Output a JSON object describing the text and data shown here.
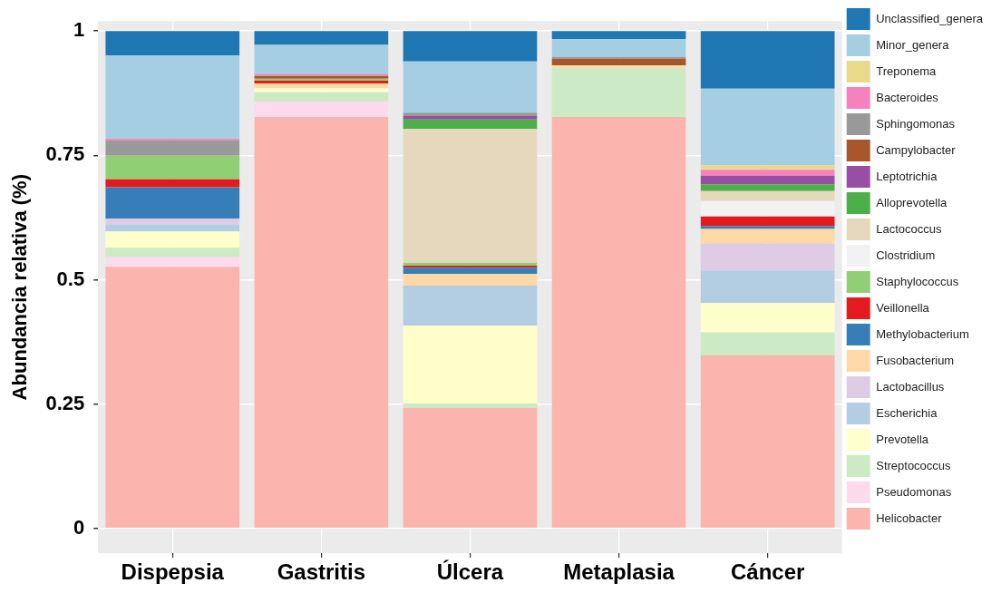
{
  "chart_data": {
    "type": "bar",
    "stacked": true,
    "ylabel": "Abundancia relativa (%)",
    "categories": [
      "Dispepsia",
      "Gastritis",
      "Úlcera",
      "Metaplasia",
      "Cáncer"
    ],
    "ylim": [
      -0.05,
      1.02
    ],
    "yticks": [
      0,
      0.25,
      0.5,
      0.75,
      1
    ],
    "grid": true,
    "legend": "right",
    "series": [
      {
        "name": "Helicobacter",
        "color": "#fbb4ae",
        "values": [
          0.526,
          0.827,
          0.242,
          0.827,
          0.348
        ]
      },
      {
        "name": "Pseudomonas",
        "color": "#fddaec",
        "values": [
          0.02,
          0.031,
          0,
          0,
          0
        ]
      },
      {
        "name": "Streptococcus",
        "color": "#ccebc5",
        "values": [
          0.018,
          0.019,
          0.009,
          0.099,
          0.046
        ]
      },
      {
        "name": "Prevotella",
        "color": "#ffffcc",
        "values": [
          0.033,
          0.008,
          0.157,
          0,
          0.059
        ]
      },
      {
        "name": "Escherichia",
        "color": "#b3cde3",
        "values": [
          0.014,
          0,
          0.08,
          0,
          0.065
        ]
      },
      {
        "name": "Lactobacillus",
        "color": "#decbe4",
        "values": [
          0.012,
          0,
          0,
          0,
          0.055
        ]
      },
      {
        "name": "Fusobacterium",
        "color": "#fed9a6",
        "values": [
          0,
          0.009,
          0.024,
          0.005,
          0.029
        ]
      },
      {
        "name": "Methylobacterium",
        "color": "#377eb8",
        "values": [
          0.063,
          0,
          0.012,
          0,
          0.006
        ]
      },
      {
        "name": "Veillonella",
        "color": "#e41a1c",
        "values": [
          0.016,
          0.006,
          0.004,
          0,
          0.019
        ]
      },
      {
        "name": "Staphylococcus",
        "color": "#90cf73",
        "values": [
          0.047,
          0.004,
          0.006,
          0,
          0
        ]
      },
      {
        "name": "Clostridium",
        "color": "#f2f2f2",
        "values": [
          0,
          0,
          0,
          0,
          0.031
        ]
      },
      {
        "name": "Lactococcus",
        "color": "#e5d8bd",
        "values": [
          0,
          0,
          0.269,
          0,
          0.02
        ]
      },
      {
        "name": "Alloprevotella",
        "color": "#4daf4a",
        "values": [
          0,
          0,
          0.019,
          0,
          0.014
        ]
      },
      {
        "name": "Leptotrichia",
        "color": "#984ea3",
        "values": [
          0,
          0,
          0.007,
          0,
          0.017
        ]
      },
      {
        "name": "Campylobacter",
        "color": "#a65628",
        "values": [
          0,
          0.005,
          0,
          0.013,
          0
        ]
      },
      {
        "name": "Sphingomonas",
        "color": "#999999",
        "values": [
          0.031,
          0,
          0.007,
          0.004,
          0
        ]
      },
      {
        "name": "Bacteroides",
        "color": "#f781bf",
        "values": [
          0.004,
          0.004,
          0,
          0,
          0.012
        ]
      },
      {
        "name": "Treponema",
        "color": "#e8d98b",
        "values": [
          0,
          0,
          0,
          0,
          0.009
        ]
      },
      {
        "name": "Minor_genera",
        "color": "#a6cee3",
        "values": [
          0.167,
          0.059,
          0.103,
          0.036,
          0.154
        ]
      },
      {
        "name": "Unclassified_genera",
        "color": "#1f78b4",
        "values": [
          0.049,
          0.028,
          0.061,
          0.016,
          0.116
        ]
      }
    ]
  }
}
